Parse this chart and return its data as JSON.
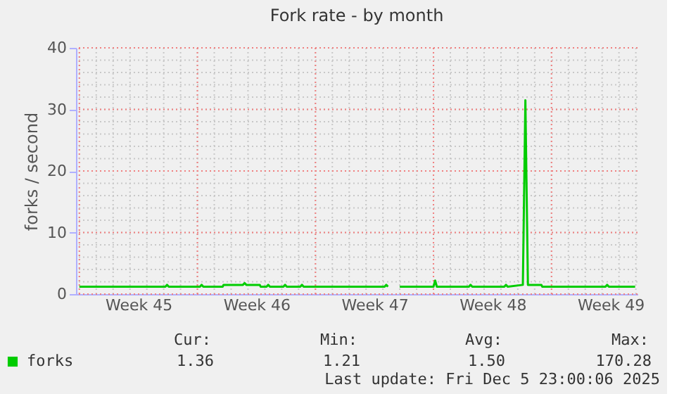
{
  "chart_data": {
    "type": "line",
    "title": "Fork rate - by month",
    "ylabel": "forks / second",
    "x": [
      "2025-11-03T00:00",
      "2025-11-08T02:24",
      "2025-11-08T04:48",
      "2025-11-08T07:12",
      "2025-11-10T03:36",
      "2025-11-10T06:00",
      "2025-11-10T08:24",
      "2025-11-11T12:00",
      "2025-11-11T13:12",
      "2025-11-12T16:48",
      "2025-11-12T19:12",
      "2025-11-12T21:36",
      "2025-11-13T16:48",
      "2025-11-13T18:00",
      "2025-11-14T02:24",
      "2025-11-14T04:48",
      "2025-11-14T07:12",
      "2025-11-15T02:24",
      "2025-11-15T04:48",
      "2025-11-15T07:12",
      "2025-11-16T02:24",
      "2025-11-16T04:48",
      "2025-11-16T07:12",
      "2025-11-21T02:24",
      "2025-11-21T04:48",
      "2025-11-21T07:12",
      "2025-11-21T16:48",
      "2025-11-22T00:00",
      "2025-11-24T00:00",
      "2025-11-24T02:24",
      "2025-11-24T04:48",
      "2025-11-26T02:24",
      "2025-11-26T04:48",
      "2025-11-26T07:12",
      "2025-11-28T04:48",
      "2025-11-28T07:12",
      "2025-11-28T09:36",
      "2025-11-29T07:12",
      "2025-11-29T10:48",
      "2025-11-29T14:24",
      "2025-11-29T15:36",
      "2025-11-30T09:36",
      "2025-11-30T10:48",
      "2025-12-04T04:48",
      "2025-12-04T07:12",
      "2025-12-04T09:36",
      "2025-12-05T23:00"
    ],
    "series": [
      {
        "name": "forks",
        "color": "#00cc00",
        "values": [
          1.2,
          1.2,
          1.5,
          1.2,
          1.2,
          1.5,
          1.2,
          1.2,
          1.5,
          1.5,
          1.8,
          1.5,
          1.5,
          1.2,
          1.2,
          1.5,
          1.2,
          1.2,
          1.5,
          1.2,
          1.2,
          1.5,
          1.2,
          1.2,
          1.5,
          1.2,
          null,
          1.2,
          1.2,
          2.2,
          1.2,
          1.2,
          1.5,
          1.2,
          1.2,
          1.5,
          1.2,
          1.5,
          31.5,
          1.5,
          1.5,
          1.5,
          1.2,
          1.2,
          1.5,
          1.2,
          1.2
        ]
      }
    ],
    "xlim": [
      "2025-11-02T19:12",
      "2025-12-06T02:24"
    ],
    "xticks": [
      {
        "value": "2025-11-03T00:00",
        "label": null
      },
      {
        "value": "2025-11-06T12:00",
        "label": "Week 45"
      },
      {
        "value": "2025-11-10T00:00",
        "label": null
      },
      {
        "value": "2025-11-13T12:00",
        "label": "Week 46"
      },
      {
        "value": "2025-11-17T00:00",
        "label": null
      },
      {
        "value": "2025-11-20T12:00",
        "label": "Week 47"
      },
      {
        "value": "2025-11-24T00:00",
        "label": null
      },
      {
        "value": "2025-11-27T12:00",
        "label": "Week 48"
      },
      {
        "value": "2025-12-01T00:00",
        "label": null
      },
      {
        "value": "2025-12-04T12:00",
        "label": "Week 49"
      }
    ],
    "ylim": [
      0,
      40
    ],
    "yticks": [
      0,
      10,
      20,
      30,
      40
    ],
    "grid": true,
    "legend": "bottom left",
    "marker": "none",
    "line_style": "solid",
    "annotations": [
      "Cur:",
      "Min:",
      "Avg:",
      "Max:",
      "1.36",
      "1.21",
      "1.50",
      "170.28",
      "Last update: Fri Dec  5 23:00:06 2025"
    ]
  }
}
